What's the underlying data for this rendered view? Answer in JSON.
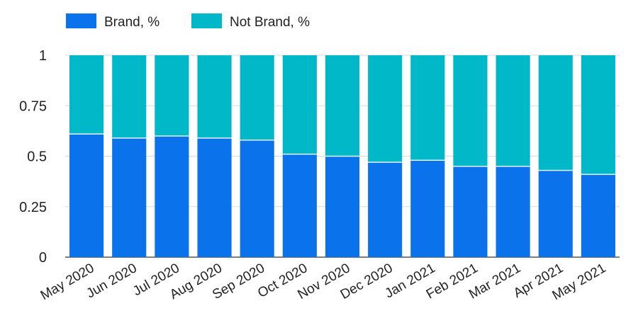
{
  "chart_data": {
    "type": "bar",
    "stacked": true,
    "categories": [
      "May 2020",
      "Jun 2020",
      "Jul 2020",
      "Aug 2020",
      "Sep 2020",
      "Oct 2020",
      "Nov 2020",
      "Dec 2020",
      "Jan 2021",
      "Feb 2021",
      "Mar 2021",
      "Apr 2021",
      "May 2021"
    ],
    "series": [
      {
        "name": "Brand, %",
        "color": "#0a73eb",
        "values": [
          0.61,
          0.59,
          0.6,
          0.59,
          0.58,
          0.51,
          0.5,
          0.47,
          0.48,
          0.45,
          0.45,
          0.43,
          0.41
        ]
      },
      {
        "name": "Not Brand, %",
        "color": "#00b8c8",
        "values": [
          0.39,
          0.41,
          0.4,
          0.41,
          0.42,
          0.49,
          0.5,
          0.53,
          0.52,
          0.55,
          0.55,
          0.57,
          0.59
        ]
      }
    ],
    "ylim": [
      0,
      1
    ],
    "yticks": [
      0,
      0.25,
      0.5,
      0.75,
      1
    ],
    "ytick_labels": [
      "0",
      "0.25",
      "0.5",
      "0.75",
      "1"
    ],
    "grid": true,
    "legend_position": "top-left",
    "title": "",
    "xlabel": "",
    "ylabel": ""
  }
}
